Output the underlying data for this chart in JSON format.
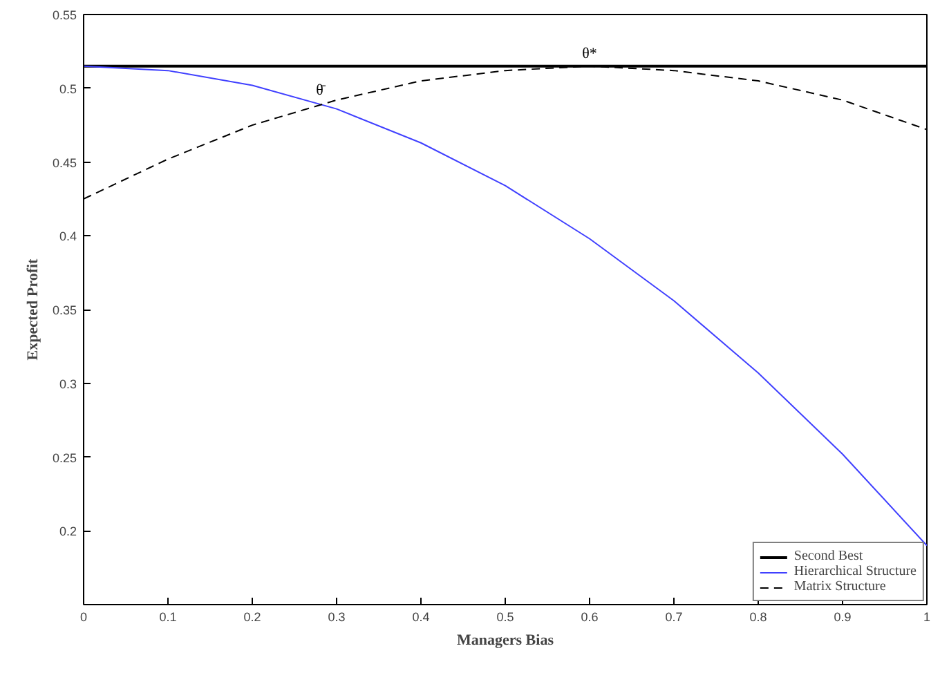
{
  "chart_data": {
    "type": "line",
    "xlabel": "Managers Bias",
    "ylabel": "Expected Profit",
    "x": [
      0,
      0.1,
      0.2,
      0.3,
      0.4,
      0.5,
      0.6,
      0.7,
      0.8,
      0.9,
      1
    ],
    "series": [
      {
        "name": "Second Best",
        "color": "#000000",
        "line_style": "solid",
        "values": [
          0.515,
          0.515,
          0.515,
          0.515,
          0.515,
          0.515,
          0.515,
          0.515,
          0.515,
          0.515,
          0.515
        ]
      },
      {
        "name": "Hierarchical Structure",
        "color": "#4040ff",
        "line_style": "solid",
        "values": [
          0.515,
          0.512,
          0.502,
          0.486,
          0.463,
          0.434,
          0.398,
          0.356,
          0.307,
          0.252,
          0.19
        ]
      },
      {
        "name": "Matrix Structure",
        "color": "#000000",
        "line_style": "dashed",
        "values": [
          0.425,
          0.452,
          0.475,
          0.492,
          0.505,
          0.512,
          0.515,
          0.512,
          0.505,
          0.492,
          0.472
        ]
      }
    ],
    "xlim": [
      0,
      1
    ],
    "ylim": [
      0.15,
      0.55
    ],
    "xticks": [
      0,
      0.1,
      0.2,
      0.3,
      0.4,
      0.5,
      0.6,
      0.7,
      0.8,
      0.9,
      1
    ],
    "yticks": [
      0.2,
      0.25,
      0.3,
      0.35,
      0.4,
      0.45,
      0.5,
      0.55
    ],
    "annotations": [
      {
        "text": "θ*",
        "x": 0.6,
        "y": 0.515
      },
      {
        "text": "θ̄",
        "x": 0.28,
        "y": 0.49
      }
    ],
    "legend": "bottom right",
    "grid": false,
    "marker": "none"
  }
}
